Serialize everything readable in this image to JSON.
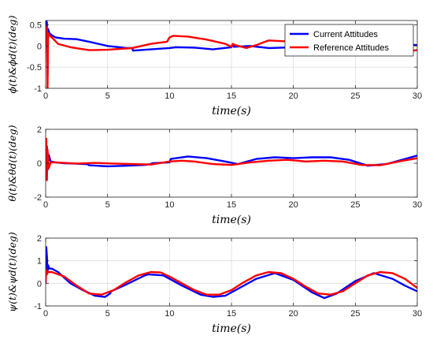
{
  "chart_data": [
    {
      "type": "line",
      "xlabel": "time(s)",
      "ylabel": "ϕ(t)&ϕd(t)(deg)",
      "xlim": [
        0,
        30
      ],
      "ylim": [
        -1,
        0.6
      ],
      "xticks": [
        0,
        5,
        10,
        15,
        20,
        25,
        30
      ],
      "yticks": [
        -1,
        -0.5,
        0,
        0.5
      ],
      "ytick_labels": [
        "-1",
        "-0.5",
        "0",
        "0.5"
      ],
      "grid": true,
      "legend": "top-right",
      "series": [
        {
          "name": "Current Attitudes",
          "color": "#0000ff",
          "x": [
            0,
            0.05,
            0.1,
            0.15,
            0.2,
            0.3,
            0.5,
            0.8,
            1.5,
            2.5,
            3.5,
            5,
            6.5,
            7,
            7.05,
            8.5,
            10,
            10.5,
            12,
            13.5,
            15,
            15.1,
            15.2,
            16.5,
            18,
            18.2,
            20,
            21.5,
            23,
            25,
            27,
            28.5,
            30
          ],
          "y": [
            0.05,
            0.6,
            0.55,
            -0.7,
            0.4,
            0.3,
            0.25,
            0.2,
            0.17,
            0.16,
            0.1,
            0.0,
            -0.05,
            -0.05,
            -0.11,
            -0.08,
            -0.05,
            -0.03,
            -0.04,
            -0.08,
            -0.03,
            0.03,
            -0.02,
            0.0,
            -0.05,
            -0.05,
            -0.03,
            -0.1,
            -0.16,
            -0.12,
            -0.05,
            0.05,
            0.02
          ]
        },
        {
          "name": "Reference Attitudes",
          "color": "#ff0000",
          "x": [
            0,
            0.05,
            0.1,
            0.15,
            0.2,
            0.3,
            0.5,
            1,
            2,
            3.5,
            5,
            7,
            8.5,
            9.8,
            10,
            10.3,
            11.5,
            13,
            14.5,
            15,
            15.1,
            15.3,
            16.2,
            17,
            18,
            20,
            21.5,
            23,
            25,
            27,
            28.5,
            30
          ],
          "y": [
            0.05,
            0.4,
            0.45,
            -1.0,
            0.3,
            0.25,
            0.2,
            0.05,
            -0.03,
            -0.1,
            -0.09,
            -0.05,
            0.05,
            0.1,
            0.2,
            0.24,
            0.22,
            0.15,
            0.05,
            -0.02,
            0.05,
            0.02,
            -0.05,
            0.02,
            0.13,
            0.1,
            0.0,
            -0.05,
            -0.1,
            -0.07,
            -0.15,
            -0.1
          ]
        }
      ]
    },
    {
      "type": "line",
      "xlabel": "time(s)",
      "ylabel": "θ(t)&θd(t)(deg)",
      "xlim": [
        0,
        30
      ],
      "ylim": [
        -2,
        2
      ],
      "xticks": [
        0,
        5,
        10,
        15,
        20,
        25,
        30
      ],
      "yticks": [
        -2,
        0,
        2
      ],
      "ytick_labels": [
        "-2",
        "0",
        "2"
      ],
      "grid": true,
      "series": [
        {
          "name": "Current Attitudes",
          "color": "#0000ff",
          "x": [
            0,
            0.05,
            0.1,
            0.15,
            0.25,
            0.4,
            0.8,
            1.5,
            2.5,
            3.4,
            3.5,
            5,
            6.5,
            8,
            8.5,
            8.6,
            10,
            10.1,
            11.5,
            13,
            14.5,
            15.5,
            17,
            18.5,
            20,
            21.5,
            23,
            24.5,
            26,
            27.5,
            29,
            30
          ],
          "y": [
            0.0,
            -0.9,
            1.0,
            -0.4,
            0.5,
            0.1,
            0.05,
            0.0,
            -0.03,
            -0.06,
            -0.12,
            -0.18,
            -0.15,
            -0.1,
            -0.05,
            0.0,
            0.05,
            0.25,
            0.4,
            0.3,
            0.1,
            -0.05,
            0.25,
            0.35,
            0.3,
            0.35,
            0.35,
            0.2,
            -0.15,
            -0.05,
            0.25,
            0.45
          ]
        },
        {
          "name": "Reference Attitudes",
          "color": "#ff0000",
          "x": [
            0,
            0.05,
            0.1,
            0.15,
            0.25,
            0.4,
            0.8,
            1.5,
            2.5,
            4,
            5.5,
            7,
            8.5,
            10,
            11,
            12,
            13.5,
            15,
            16.5,
            18,
            19.5,
            21,
            22.5,
            24,
            25.5,
            27,
            28.5,
            30
          ],
          "y": [
            0.0,
            1.45,
            -1.0,
            0.8,
            -0.3,
            0.05,
            0.05,
            0.02,
            -0.02,
            0.02,
            -0.02,
            -0.05,
            -0.08,
            0.1,
            0.15,
            0.1,
            -0.05,
            -0.1,
            0.05,
            0.15,
            0.2,
            0.1,
            0.15,
            0.1,
            -0.1,
            -0.12,
            0.1,
            0.3
          ]
        }
      ]
    },
    {
      "type": "line",
      "xlabel": "time(s)",
      "ylabel": "ψ(t)&ψd(t)(deg)",
      "xlim": [
        0,
        30
      ],
      "ylim": [
        -1,
        2
      ],
      "xticks": [
        0,
        5,
        10,
        15,
        20,
        25,
        30
      ],
      "yticks": [
        -1,
        0,
        1,
        2
      ],
      "ytick_labels": [
        "-1",
        "0",
        "1",
        "2"
      ],
      "grid": true,
      "series": [
        {
          "name": "Current Attitudes",
          "color": "#0000ff",
          "x": [
            0,
            0.05,
            0.1,
            0.15,
            0.2,
            0.3,
            0.5,
            1,
            2,
            3,
            4,
            4.8,
            5.2,
            5.3,
            6.5,
            8,
            8.3,
            9.5,
            11,
            12.5,
            13.5,
            14.5,
            15.5,
            17,
            18.5,
            20,
            21.5,
            22.5,
            23.5,
            25,
            26.5,
            28,
            29,
            30
          ],
          "y": [
            0.0,
            1.6,
            1.2,
            0.5,
            0.8,
            0.65,
            0.65,
            0.5,
            0.0,
            -0.3,
            -0.55,
            -0.6,
            -0.45,
            -0.35,
            -0.05,
            0.35,
            0.4,
            0.35,
            -0.1,
            -0.5,
            -0.6,
            -0.55,
            -0.25,
            0.2,
            0.45,
            0.15,
            -0.4,
            -0.65,
            -0.45,
            0.1,
            0.45,
            0.2,
            -0.1,
            -0.35
          ]
        },
        {
          "name": "Reference Attitudes",
          "color": "#ff0000",
          "x": [
            0,
            0.05,
            0.1,
            0.2,
            0.5,
            1.5,
            2.5,
            3.5,
            4.5,
            5.5,
            6.5,
            7.5,
            8.5,
            9.3,
            10,
            11,
            12,
            13,
            14,
            15,
            16,
            17,
            18,
            19,
            20,
            21,
            22,
            23,
            24,
            25,
            26,
            27,
            28,
            29,
            30
          ],
          "y": [
            0.0,
            0.6,
            0.4,
            0.5,
            0.5,
            0.3,
            -0.1,
            -0.45,
            -0.5,
            -0.3,
            0.05,
            0.35,
            0.5,
            0.48,
            0.3,
            0.0,
            -0.3,
            -0.5,
            -0.5,
            -0.3,
            0.05,
            0.35,
            0.5,
            0.45,
            0.2,
            -0.15,
            -0.45,
            -0.5,
            -0.35,
            0.0,
            0.35,
            0.5,
            0.45,
            0.2,
            -0.2
          ]
        }
      ]
    }
  ]
}
